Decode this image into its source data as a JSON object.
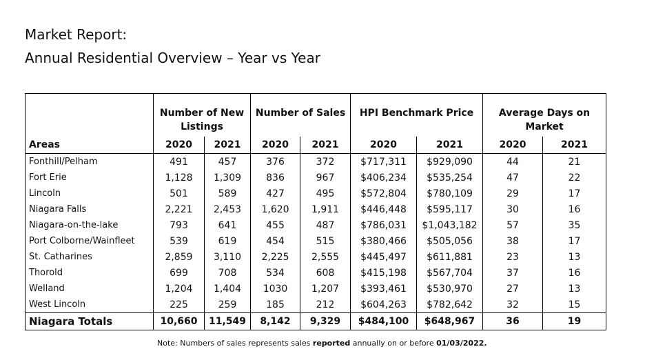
{
  "title": "Market Report:",
  "subtitle": "Annual Residential Overview – Year vs Year",
  "table": {
    "group_headers": [
      "Number of New Listings",
      "Number of Sales",
      "HPI Benchmark Price",
      "Average Days on Market"
    ],
    "areas_header": "Areas",
    "years": [
      "2020",
      "2021"
    ],
    "rows": [
      {
        "area": "Fonthill/Pelham",
        "nl20": "491",
        "nl21": "457",
        "s20": "376",
        "s21": "372",
        "p20": "$717,311",
        "p21": "$929,090",
        "d20": "44",
        "d21": "21"
      },
      {
        "area": "Fort Erie",
        "nl20": "1,128",
        "nl21": "1,309",
        "s20": "836",
        "s21": "967",
        "p20": "$406,234",
        "p21": "$535,254",
        "d20": "47",
        "d21": "22"
      },
      {
        "area": "Lincoln",
        "nl20": "501",
        "nl21": "589",
        "s20": "427",
        "s21": "495",
        "p20": "$572,804",
        "p21": "$780,109",
        "d20": "29",
        "d21": "17"
      },
      {
        "area": "Niagara Falls",
        "nl20": "2,221",
        "nl21": "2,453",
        "s20": "1,620",
        "s21": "1,911",
        "p20": "$446,448",
        "p21": "$595,117",
        "d20": "30",
        "d21": "16"
      },
      {
        "area": "Niagara-on-the-lake",
        "nl20": "793",
        "nl21": "641",
        "s20": "455",
        "s21": "487",
        "p20": "$786,031",
        "p21": "$1,043,182",
        "d20": "57",
        "d21": "35"
      },
      {
        "area": "Port Colborne/Wainfleet",
        "nl20": "539",
        "nl21": "619",
        "s20": "454",
        "s21": "515",
        "p20": "$380,466",
        "p21": "$505,056",
        "d20": "38",
        "d21": "17"
      },
      {
        "area": "St. Catharines",
        "nl20": "2,859",
        "nl21": "3,110",
        "s20": "2,225",
        "s21": "2,555",
        "p20": "$445,497",
        "p21": "$611,881",
        "d20": "23",
        "d21": "13"
      },
      {
        "area": "Thorold",
        "nl20": "699",
        "nl21": "708",
        "s20": "534",
        "s21": "608",
        "p20": "$415,198",
        "p21": "$567,704",
        "d20": "37",
        "d21": "16"
      },
      {
        "area": "Welland",
        "nl20": "1,204",
        "nl21": "1,404",
        "s20": "1030",
        "s21": "1,207",
        "p20": "$393,461",
        "p21": "$530,970",
        "d20": "27",
        "d21": "13"
      },
      {
        "area": "West Lincoln",
        "nl20": "225",
        "nl21": "259",
        "s20": "185",
        "s21": "212",
        "p20": "$604,263",
        "p21": "$782,642",
        "d20": "32",
        "d21": "15"
      }
    ],
    "totals": {
      "area": "Niagara Totals",
      "nl20": "10,660",
      "nl21": "11,549",
      "s20": "8,142",
      "s21": "9,329",
      "p20": "$484,100",
      "p21": "$648,967",
      "d20": "36",
      "d21": "19"
    }
  },
  "note": {
    "prefix": "Note: Numbers of sales represents sales ",
    "bold1": "reported",
    "middle": " annually on or before ",
    "bold2": "01/03/2022."
  }
}
